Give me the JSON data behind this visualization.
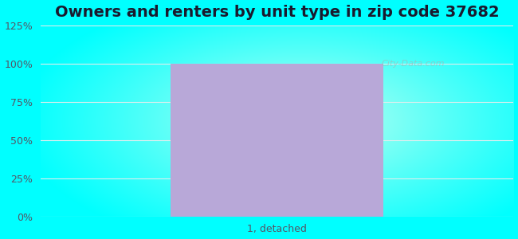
{
  "title": "Owners and renters by unit type in zip code 37682",
  "categories": [
    "1, detached"
  ],
  "values": [
    100
  ],
  "bar_color": "#b8a8d8",
  "ylim": [
    0,
    125
  ],
  "yticks": [
    0,
    25,
    50,
    75,
    100,
    125
  ],
  "yticklabels": [
    "0%",
    "25%",
    "50%",
    "75%",
    "100%",
    "125%"
  ],
  "title_fontsize": 14,
  "tick_fontsize": 9,
  "xlabel_fontsize": 9,
  "fig_bg_color": "#00ffff",
  "inner_color": [
    0.92,
    1.0,
    0.93
  ],
  "outer_color": [
    0.0,
    1.0,
    1.0
  ],
  "watermark": "City-Data.com",
  "grid_color": "#ddeeee",
  "bar_width": 0.45,
  "title_color": "#1a1a2e"
}
